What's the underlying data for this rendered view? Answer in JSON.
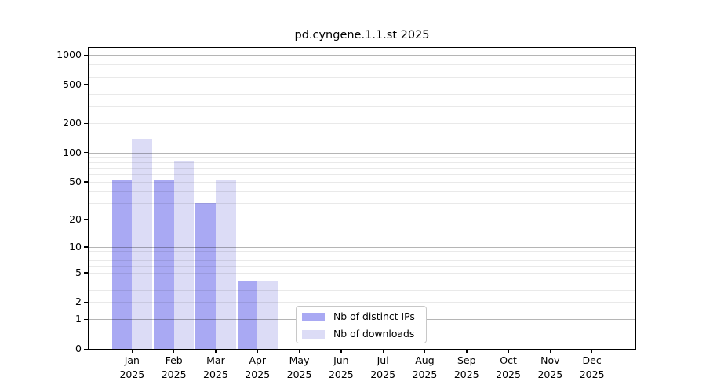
{
  "chart_data": {
    "type": "bar",
    "title": "pd.cyngene.1.1.st 2025",
    "categories": [
      "Jan",
      "Feb",
      "Mar",
      "Apr",
      "May",
      "Jun",
      "Jul",
      "Aug",
      "Sep",
      "Oct",
      "Nov",
      "Dec"
    ],
    "x_sublabel": "2025",
    "series": [
      {
        "name": "Nb of distinct IPs",
        "color": "#a9a9f3",
        "values": [
          52,
          52,
          30,
          4,
          0,
          0,
          0,
          0,
          0,
          0,
          0,
          0
        ]
      },
      {
        "name": "Nb of downloads",
        "color": "#dcdcf6",
        "values": [
          140,
          83,
          52,
          4,
          0,
          0,
          0,
          0,
          0,
          0,
          0,
          0
        ]
      }
    ],
    "y_scale": "log10(1+x)",
    "ylim": [
      0,
      1186
    ],
    "y_ticks": [
      0,
      1,
      2,
      5,
      10,
      20,
      50,
      100,
      200,
      500,
      1000
    ],
    "y_major_gridlines": [
      1,
      10,
      100,
      1000
    ],
    "grid": "horizontal",
    "legend_position": "inside lower-center",
    "colors": {
      "background": "#ffffff",
      "frame": "#000000",
      "text": "#000000",
      "major_grid": "#b5b5b5",
      "minor_grid": "#e9e9e9",
      "legend_border": "#c8c8c8"
    }
  }
}
